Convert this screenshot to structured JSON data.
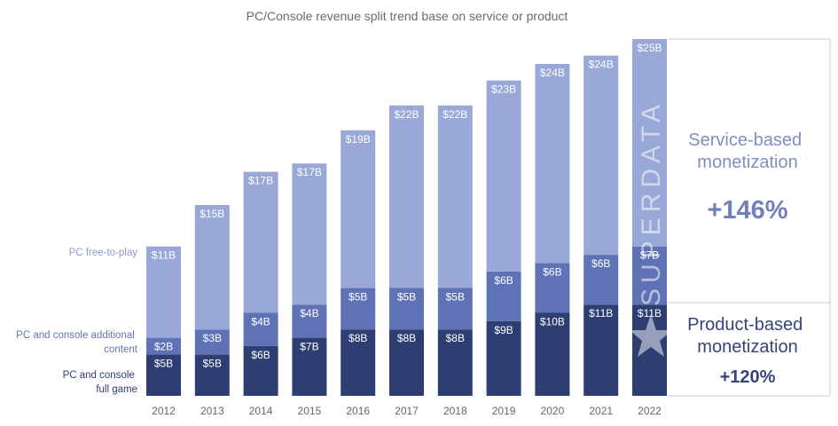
{
  "chart_data": {
    "type": "bar",
    "stacked": true,
    "title": "PC/Console revenue split trend base on service or product",
    "categories": [
      "2012",
      "2013",
      "2014",
      "2015",
      "2016",
      "2017",
      "2018",
      "2019",
      "2020",
      "2021",
      "2022"
    ],
    "series": [
      {
        "name": "PC and console full game",
        "values": [
          5,
          5,
          6,
          7,
          8,
          8,
          8,
          9,
          10,
          11,
          11
        ],
        "labels": [
          "$5B",
          "$5B",
          "$6B",
          "$7B",
          "$8B",
          "$8B",
          "$8B",
          "$9B",
          "$10B",
          "$11B",
          "$11B"
        ],
        "color": "#2e3d72"
      },
      {
        "name": "PC and console additional content",
        "values": [
          2,
          3,
          4,
          4,
          5,
          5,
          5,
          6,
          6,
          6,
          7
        ],
        "labels": [
          "$2B",
          "$3B",
          "$4B",
          "$4B",
          "$5B",
          "$5B",
          "$5B",
          "$6B",
          "$6B",
          "$6B",
          "$7B"
        ],
        "color": "#5f72b5"
      },
      {
        "name": "PC free-to-play",
        "values": [
          11,
          15,
          17,
          17,
          19,
          22,
          22,
          23,
          24,
          24,
          25
        ],
        "labels": [
          "$11B",
          "$15B",
          "$17B",
          "$17B",
          "$19B",
          "$22B",
          "$22B",
          "$23B",
          "$24B",
          "$24B",
          "$25B"
        ],
        "color": "#99a8d6"
      }
    ],
    "ylim": [
      0,
      43
    ],
    "grid": false,
    "legend": "left"
  },
  "annotations": {
    "service_label": [
      "Service-based",
      "monetization"
    ],
    "service_pct": "+146%",
    "product_label": [
      "Product-based",
      "monetization"
    ],
    "product_pct": "+120%",
    "watermark": "SUPERDATA"
  },
  "colors": {
    "full_game": "#2e3d72",
    "additional": "#5f72b5",
    "f2p": "#99a8d6"
  }
}
